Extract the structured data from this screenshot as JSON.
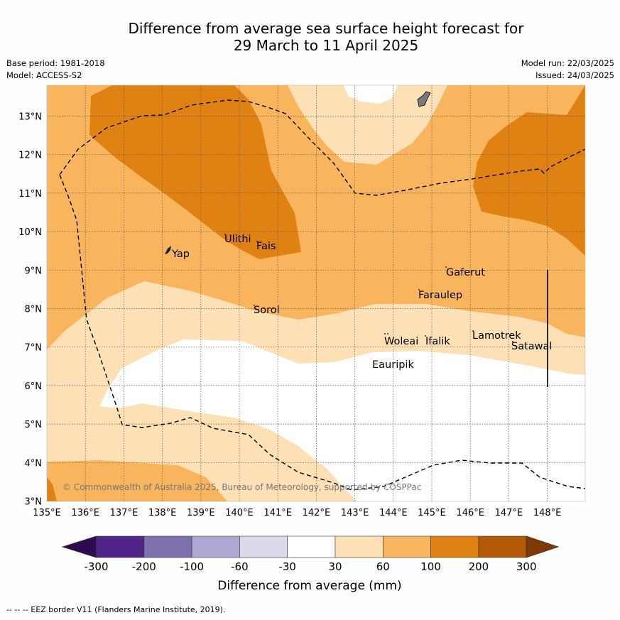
{
  "title_line1": "Difference from average sea surface height forecast for",
  "title_line2": "29 March to 11 April 2025",
  "base_period": "Base period: 1981-2018",
  "model": "Model: ACCESS-S2",
  "model_run": "Model run: 22/03/2025",
  "issued": "Issued: 24/03/2025",
  "copyright": "© Commonwealth of Australia 2025, Bureau of Meteorology, supported by COSPPac",
  "lon_ticks": [
    "135°E",
    "136°E",
    "137°E",
    "138°E",
    "139°E",
    "140°E",
    "141°E",
    "142°E",
    "143°E",
    "144°E",
    "145°E",
    "146°E",
    "147°E",
    "148°E"
  ],
  "lat_ticks": [
    "3°N",
    "4°N",
    "5°N",
    "6°N",
    "7°N",
    "8°N",
    "9°N",
    "10°N",
    "11°N",
    "12°N",
    "13°N"
  ],
  "places": [
    {
      "name": "Yap"
    },
    {
      "name": "Ulithi"
    },
    {
      "name": "Fais"
    },
    {
      "name": "Gaferut"
    },
    {
      "name": "Faraulep"
    },
    {
      "name": "Sorol"
    },
    {
      "name": "Woleai"
    },
    {
      "name": "Ifalik"
    },
    {
      "name": "Lamotrek"
    },
    {
      "name": "Satawal"
    },
    {
      "name": "Eauripik"
    }
  ],
  "colorbar": {
    "labels": [
      "-300",
      "-200",
      "-100",
      "-60",
      "-30",
      "30",
      "60",
      "100",
      "200",
      "300"
    ],
    "colors": [
      "#2e0a52",
      "#512488",
      "#7e70ad",
      "#b0a8d4",
      "#dadaec",
      "#ffffff",
      "#fde0b5",
      "#f9b55e",
      "#e08213",
      "#b25806",
      "#7e3a06"
    ],
    "title": "Difference from average (mm)"
  },
  "footer": "--  --  -- EEZ border V11 (Flanders Marine Institute, 2019)."
}
